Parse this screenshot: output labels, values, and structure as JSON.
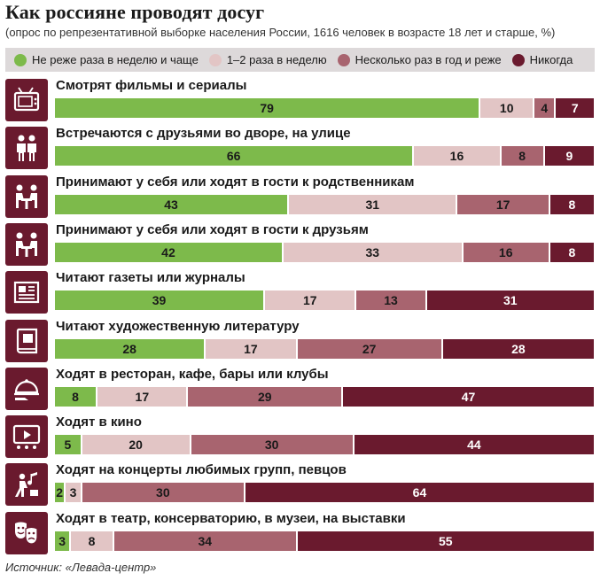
{
  "chart_data": {
    "type": "bar",
    "orientation": "horizontal",
    "stacked": true,
    "title": "Как россияне проводят досуг",
    "subtitle": "(опрос по репрезентативной выборке населения России, 1616 человек в возрасте 18 лет и старше, %)",
    "source": "Источник: «Левада-центр»",
    "legend_position": "top",
    "categories": [
      "Смотрят фильмы и сериалы",
      "Встречаются с друзьями во дворе, на улице",
      "Принимают у себя или ходят в гости к родственникам",
      "Принимают у себя или ходят в гости к друзьям",
      "Читают газеты или журналы",
      "Читают художественную литературу",
      "Ходят в ресторан, кафе, бары или клубы",
      "Ходят в кино",
      "Ходят на концерты любимых групп, певцов",
      "Ходят в театр, консерваторию, в музеи, на выставки"
    ],
    "icons": [
      "tv-icon",
      "friends-icon",
      "guests-relatives-icon",
      "guests-friends-icon",
      "newspaper-icon",
      "book-icon",
      "restaurant-cloche-icon",
      "cinema-screen-icon",
      "concert-icon",
      "theatre-masks-icon"
    ],
    "series": [
      {
        "name": "Не реже раза в неделю и чаще",
        "color": "#7dba4b",
        "values": [
          79,
          66,
          43,
          42,
          39,
          28,
          8,
          5,
          2,
          3
        ]
      },
      {
        "name": "1–2 раза в неделю",
        "color": "#e2c5c5",
        "values": [
          10,
          16,
          31,
          33,
          17,
          17,
          17,
          20,
          3,
          8
        ]
      },
      {
        "name": "Несколько раз в год и реже",
        "color": "#a8646f",
        "values": [
          4,
          8,
          17,
          16,
          13,
          27,
          29,
          30,
          30,
          34
        ]
      },
      {
        "name": "Никогда",
        "color": "#6a1a2e",
        "values": [
          7,
          9,
          8,
          8,
          31,
          28,
          47,
          44,
          64,
          55
        ]
      }
    ],
    "xlim": [
      0,
      100
    ]
  }
}
